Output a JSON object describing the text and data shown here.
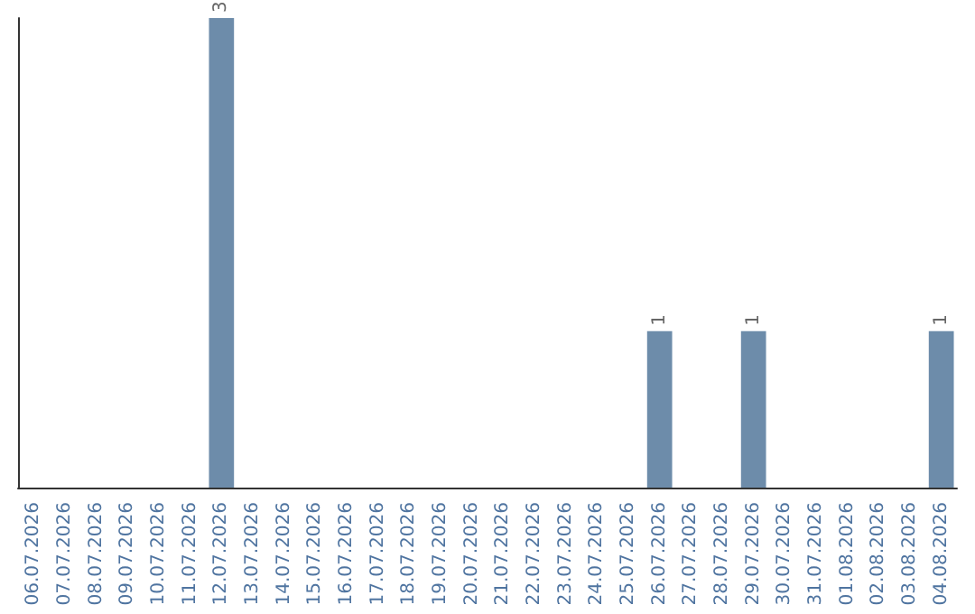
{
  "chart_data": {
    "type": "bar",
    "categories": [
      "06.07.2026",
      "07.07.2026",
      "08.07.2026",
      "09.07.2026",
      "10.07.2026",
      "11.07.2026",
      "12.07.2026",
      "13.07.2026",
      "14.07.2026",
      "15.07.2026",
      "16.07.2026",
      "17.07.2026",
      "18.07.2026",
      "19.07.2026",
      "20.07.2026",
      "21.07.2026",
      "22.07.2026",
      "23.07.2026",
      "24.07.2026",
      "25.07.2026",
      "26.07.2026",
      "27.07.2026",
      "28.07.2026",
      "29.07.2026",
      "30.07.2026",
      "31.07.2026",
      "01.08.2026",
      "02.08.2026",
      "03.08.2026",
      "04.08.2026"
    ],
    "values": [
      0,
      0,
      0,
      0,
      0,
      0,
      3,
      0,
      0,
      0,
      0,
      0,
      0,
      0,
      0,
      0,
      0,
      0,
      0,
      0,
      1,
      0,
      0,
      1,
      0,
      0,
      0,
      0,
      0,
      1
    ],
    "value_labels": [
      null,
      null,
      null,
      null,
      null,
      null,
      "3",
      null,
      null,
      null,
      null,
      null,
      null,
      null,
      null,
      null,
      null,
      null,
      null,
      null,
      "1",
      null,
      null,
      "1",
      null,
      null,
      null,
      null,
      null,
      "1"
    ],
    "color": "#6d8caa",
    "grid": false
  }
}
